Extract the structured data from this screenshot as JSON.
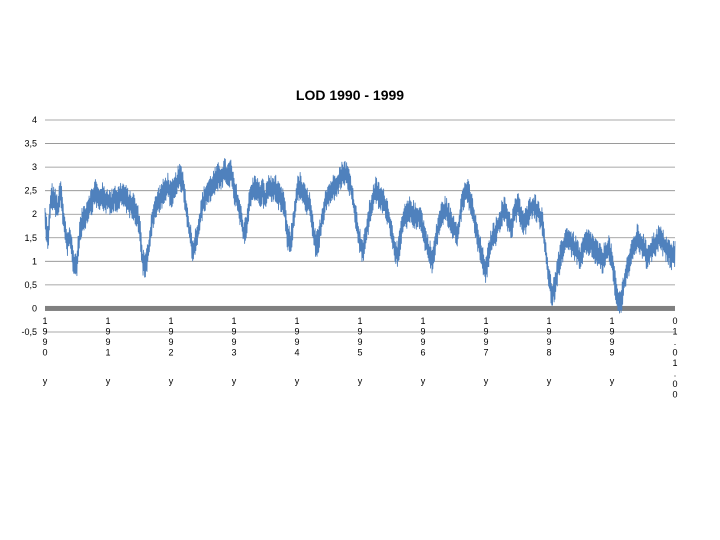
{
  "chart_data": {
    "type": "line",
    "title": "LOD 1990 - 1999",
    "xlabel": "",
    "ylabel": "",
    "ylim": [
      -0.5,
      4
    ],
    "y_ticks": [
      "4",
      "3,5",
      "3",
      "2,5",
      "2",
      "1,5",
      "1",
      "0,5",
      "0",
      "-0,5"
    ],
    "y_tick_values": [
      4,
      3.5,
      3,
      2.5,
      2,
      1.5,
      1,
      0.5,
      0,
      -0.5
    ],
    "x_range": [
      0,
      10
    ],
    "x_ticks": [
      {
        "value": 0,
        "label": [
          "1",
          "9",
          "9",
          "0"
        ],
        "suffix": "y"
      },
      {
        "value": 1,
        "label": [
          "1",
          "9",
          "9",
          "1"
        ],
        "suffix": "y"
      },
      {
        "value": 2,
        "label": [
          "1",
          "9",
          "9",
          "2"
        ],
        "suffix": "y"
      },
      {
        "value": 3,
        "label": [
          "1",
          "9",
          "9",
          "3"
        ],
        "suffix": "y"
      },
      {
        "value": 4,
        "label": [
          "1",
          "9",
          "9",
          "4"
        ],
        "suffix": "y"
      },
      {
        "value": 5,
        "label": [
          "1",
          "9",
          "9",
          "5"
        ],
        "suffix": "y"
      },
      {
        "value": 6,
        "label": [
          "1",
          "9",
          "9",
          "6"
        ],
        "suffix": "y"
      },
      {
        "value": 7,
        "label": [
          "1",
          "9",
          "9",
          "7"
        ],
        "suffix": "y"
      },
      {
        "value": 8,
        "label": [
          "1",
          "9",
          "9",
          "8"
        ],
        "suffix": "y"
      },
      {
        "value": 9,
        "label": [
          "1",
          "9",
          "9",
          "9"
        ],
        "suffix": "y"
      },
      {
        "value": 10,
        "label": [
          "0",
          "1",
          ".",
          "0",
          "1",
          ".",
          "0",
          "0"
        ],
        "suffix": ""
      }
    ],
    "grid": true,
    "legend": "none",
    "colors": {
      "line": "#4f81bd",
      "grid": "#8c8c8c",
      "zero_band": "#808080"
    },
    "series": [
      {
        "x": [
          0,
          0.05,
          0.1,
          0.15,
          0.2,
          0.25,
          0.3,
          0.35,
          0.4,
          0.45,
          0.5,
          0.55,
          0.6,
          0.65,
          0.7,
          0.75,
          0.8,
          0.85,
          0.9,
          0.95,
          1.0,
          1.05,
          1.1,
          1.15,
          1.2,
          1.25,
          1.3,
          1.35,
          1.4,
          1.45,
          1.5,
          1.55,
          1.6,
          1.65,
          1.7,
          1.75,
          1.8,
          1.85,
          1.9,
          1.95,
          2.0,
          2.05,
          2.1,
          2.15,
          2.2,
          2.25,
          2.3,
          2.35,
          2.4,
          2.45,
          2.5,
          2.55,
          2.6,
          2.65,
          2.7,
          2.75,
          2.8,
          2.85,
          2.9,
          2.95,
          3.0,
          3.05,
          3.1,
          3.15,
          3.2,
          3.25,
          3.3,
          3.35,
          3.4,
          3.45,
          3.5,
          3.55,
          3.6,
          3.65,
          3.7,
          3.75,
          3.8,
          3.85,
          3.9,
          3.95,
          4.0,
          4.05,
          4.1,
          4.15,
          4.2,
          4.25,
          4.3,
          4.35,
          4.4,
          4.45,
          4.5,
          4.55,
          4.6,
          4.65,
          4.7,
          4.75,
          4.8,
          4.85,
          4.9,
          4.95,
          5.0,
          5.05,
          5.1,
          5.15,
          5.2,
          5.25,
          5.3,
          5.35,
          5.4,
          5.45,
          5.5,
          5.55,
          5.6,
          5.65,
          5.7,
          5.75,
          5.8,
          5.85,
          5.9,
          5.95,
          6.0,
          6.05,
          6.1,
          6.15,
          6.2,
          6.25,
          6.3,
          6.35,
          6.4,
          6.45,
          6.5,
          6.55,
          6.6,
          6.65,
          6.7,
          6.75,
          6.8,
          6.85,
          6.9,
          6.95,
          7.0,
          7.05,
          7.1,
          7.15,
          7.2,
          7.25,
          7.3,
          7.35,
          7.4,
          7.45,
          7.5,
          7.55,
          7.6,
          7.65,
          7.7,
          7.75,
          7.8,
          7.85,
          7.9,
          7.95,
          8.0,
          8.05,
          8.1,
          8.15,
          8.2,
          8.25,
          8.3,
          8.35,
          8.4,
          8.45,
          8.5,
          8.55,
          8.6,
          8.65,
          8.7,
          8.75,
          8.8,
          8.85,
          8.9,
          8.95,
          9.0,
          9.05,
          9.1,
          9.15,
          9.2,
          9.25,
          9.3,
          9.35,
          9.4,
          9.45,
          9.5,
          9.55,
          9.6,
          9.65,
          9.7,
          9.75,
          9.8,
          9.85,
          9.9,
          9.95,
          10.0
        ],
        "values": [
          1.9,
          1.5,
          2.4,
          2.3,
          2.1,
          2.5,
          1.8,
          1.4,
          1.5,
          1.0,
          0.9,
          1.6,
          1.9,
          2.0,
          2.2,
          2.3,
          2.5,
          2.3,
          2.4,
          2.3,
          2.3,
          2.2,
          2.4,
          2.3,
          2.4,
          2.4,
          2.3,
          2.2,
          2.2,
          2.0,
          1.8,
          1.0,
          0.9,
          1.3,
          1.9,
          2.1,
          2.3,
          2.4,
          2.5,
          2.6,
          2.4,
          2.5,
          2.7,
          2.8,
          2.6,
          2.0,
          1.6,
          1.2,
          1.5,
          1.8,
          2.2,
          2.4,
          2.5,
          2.6,
          2.7,
          2.8,
          2.8,
          2.9,
          2.8,
          2.9,
          2.5,
          2.3,
          2.0,
          1.6,
          1.8,
          2.3,
          2.5,
          2.6,
          2.4,
          2.5,
          2.3,
          2.6,
          2.5,
          2.6,
          2.4,
          2.3,
          2.2,
          1.5,
          1.4,
          1.9,
          2.5,
          2.6,
          2.4,
          2.3,
          2.2,
          1.7,
          1.3,
          1.5,
          1.9,
          2.3,
          2.4,
          2.5,
          2.6,
          2.7,
          2.8,
          2.9,
          2.8,
          2.6,
          2.2,
          1.8,
          1.4,
          1.2,
          1.6,
          2.0,
          2.3,
          2.5,
          2.4,
          2.3,
          2.2,
          2.0,
          1.6,
          1.3,
          1.1,
          1.6,
          1.9,
          2.0,
          2.1,
          2.0,
          1.9,
          2.0,
          1.7,
          1.4,
          1.2,
          1.0,
          1.4,
          1.8,
          2.0,
          2.1,
          2.0,
          1.8,
          1.7,
          1.6,
          2.1,
          2.4,
          2.5,
          2.3,
          2.0,
          1.6,
          1.3,
          1.0,
          0.8,
          1.2,
          1.5,
          1.6,
          1.8,
          2.0,
          2.1,
          1.9,
          1.7,
          2.0,
          2.2,
          2.0,
          1.8,
          1.9,
          2.1,
          2.2,
          2.1,
          2.0,
          1.8,
          1.2,
          0.6,
          0.3,
          0.5,
          0.9,
          1.2,
          1.4,
          1.5,
          1.4,
          1.3,
          1.2,
          1.0,
          1.3,
          1.4,
          1.4,
          1.3,
          1.2,
          1.1,
          1.0,
          1.2,
          1.3,
          1.0,
          0.5,
          0.1,
          0.2,
          0.6,
          0.9,
          1.1,
          1.3,
          1.5,
          1.4,
          1.3,
          1.1,
          1.2,
          1.3,
          1.4,
          1.5,
          1.4,
          1.3,
          1.2,
          1.1,
          1.2
        ],
        "noise_amplitude": 0.3
      }
    ]
  }
}
